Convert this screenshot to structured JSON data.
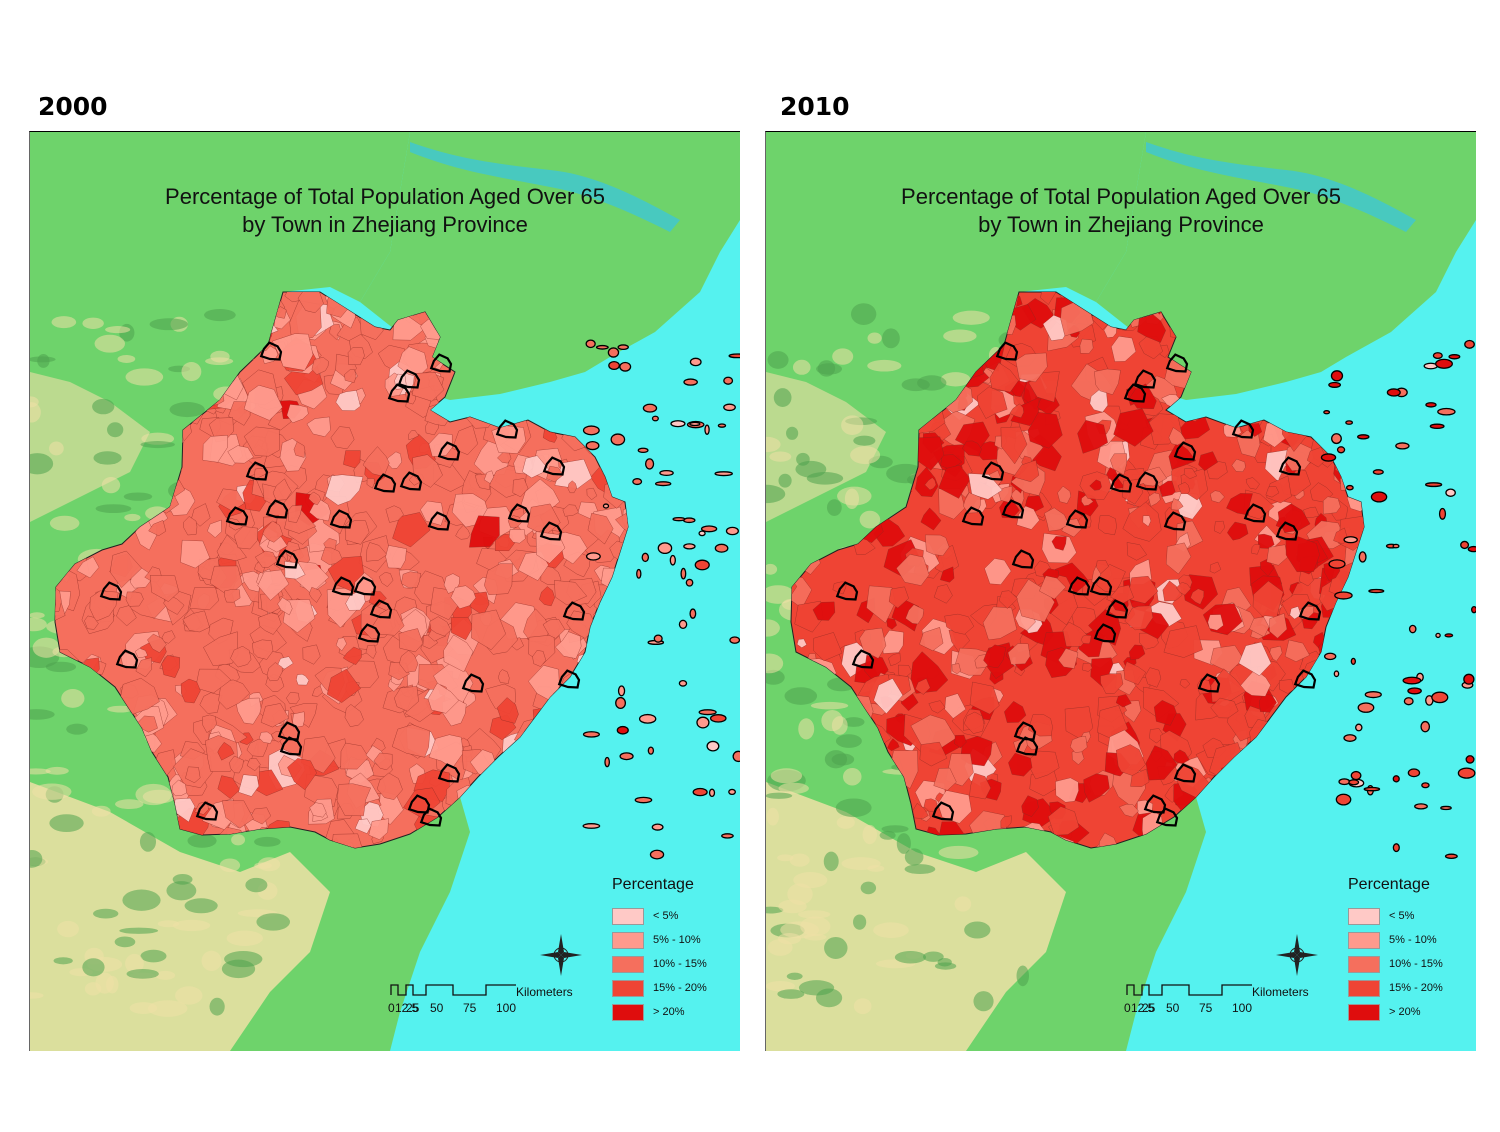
{
  "colors": {
    "ocean": "#55f2ef",
    "land_lowland": "#6ed36b",
    "land_forest": "#4fa24f",
    "highland": "#efe0a6",
    "river": "#48c9bf",
    "boundary": "#000000"
  },
  "legend_classes": [
    {
      "label": "< 5%",
      "color": "#ffc9c6"
    },
    {
      "label": "5% - 10%",
      "color": "#ff9a8d"
    },
    {
      "label": "10% - 15%",
      "color": "#f56f5d"
    },
    {
      "label": "15% - 20%",
      "color": "#ef4434"
    },
    {
      "label": "> 20%",
      "color": "#df0d0d"
    }
  ],
  "panels": [
    {
      "year": "2000",
      "title_line1": "Percentage of Total Population Aged Over 65",
      "title_line2": "by Town in Zhejiang Province",
      "legend_title": "Percentage",
      "base_class": "10% - 15%",
      "compass_icon": "north-arrow-compass",
      "scale": {
        "unit": "Kilometers",
        "ticks": [
          "0",
          "12.5",
          "25",
          "50",
          "75",
          "100"
        ]
      }
    },
    {
      "year": "2010",
      "title_line1": "Percentage of Total Population Aged Over 65",
      "title_line2": "by Town in Zhejiang Province",
      "legend_title": "Percentage",
      "base_class": "15% - 20%",
      "compass_icon": "north-arrow-compass",
      "scale": {
        "unit": "Kilometers",
        "ticks": [
          "0",
          "12.5",
          "25",
          "50",
          "75",
          "100"
        ]
      }
    }
  ]
}
